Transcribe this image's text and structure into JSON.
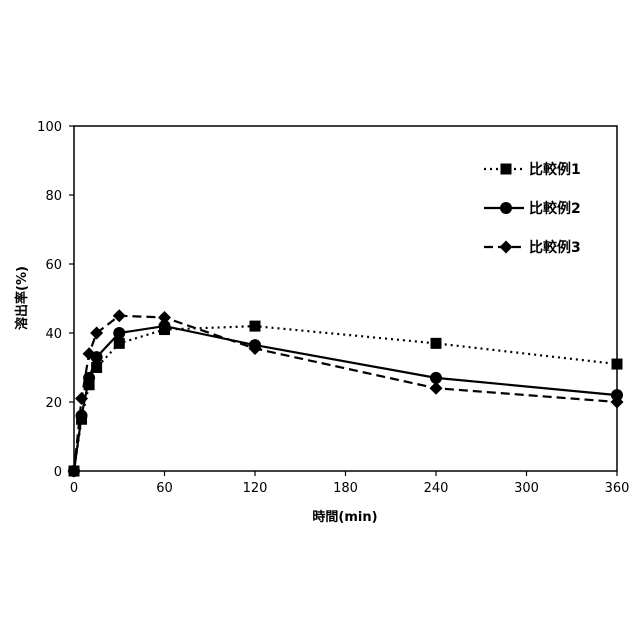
{
  "chart_data": {
    "type": "line",
    "title": "",
    "xlabel": "時間(min)",
    "ylabel": "溶出率(%)",
    "xlim": [
      0,
      360
    ],
    "ylim": [
      0,
      100
    ],
    "xticks": [
      0,
      60,
      120,
      180,
      240,
      300,
      360
    ],
    "yticks": [
      0,
      20,
      40,
      60,
      80,
      100
    ],
    "grid": false,
    "legend_position": "top-right",
    "series": [
      {
        "name": "比較例1",
        "line_style": "dotted",
        "marker": "square",
        "color": "#000000",
        "points": [
          [
            0,
            0
          ],
          [
            5,
            15
          ],
          [
            10,
            25
          ],
          [
            15,
            30
          ],
          [
            30,
            37
          ],
          [
            60,
            41
          ],
          [
            120,
            42
          ],
          [
            240,
            37
          ],
          [
            360,
            31
          ]
        ]
      },
      {
        "name": "比較例2",
        "line_style": "solid",
        "marker": "circle",
        "color": "#000000",
        "points": [
          [
            0,
            0
          ],
          [
            5,
            16
          ],
          [
            10,
            27
          ],
          [
            15,
            33
          ],
          [
            30,
            40
          ],
          [
            60,
            42
          ],
          [
            120,
            36.5
          ],
          [
            240,
            27
          ],
          [
            360,
            22
          ]
        ]
      },
      {
        "name": "比較例3",
        "line_style": "dashed",
        "marker": "diamond",
        "color": "#000000",
        "points": [
          [
            0,
            0
          ],
          [
            5,
            21
          ],
          [
            10,
            34
          ],
          [
            15,
            40
          ],
          [
            30,
            45
          ],
          [
            60,
            44.5
          ],
          [
            120,
            35.5
          ],
          [
            240,
            24
          ],
          [
            360,
            20
          ]
        ]
      }
    ]
  }
}
